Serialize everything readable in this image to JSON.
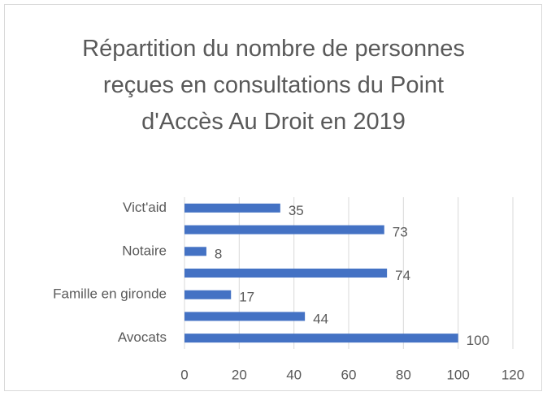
{
  "chart_data": {
    "type": "bar",
    "orientation": "horizontal",
    "title": "Répartition du  nombre de personnes reçues en consultations du Point d'Accès Au Droit en 2019",
    "categories": [
      "Avocats",
      null,
      "Famille en gironde",
      null,
      "Notaire",
      null,
      "Vict'aid"
    ],
    "values": [
      100,
      44,
      17,
      74,
      8,
      73,
      35
    ],
    "color": "#4472c4",
    "xlim": [
      0,
      120
    ],
    "xticks": [
      0,
      20,
      40,
      60,
      80,
      100,
      120
    ],
    "grid": true
  }
}
